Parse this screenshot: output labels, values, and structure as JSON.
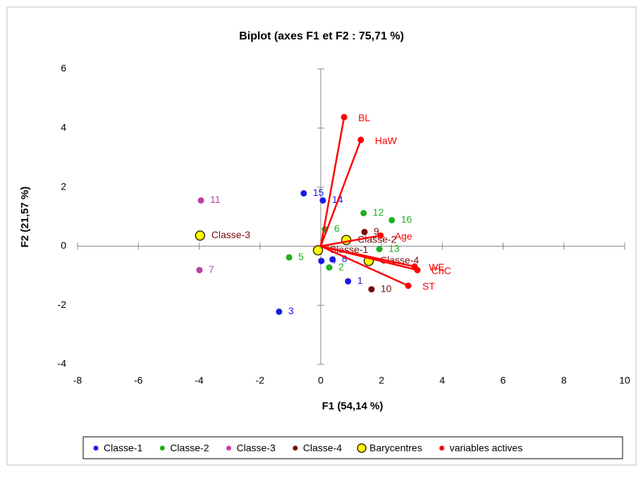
{
  "chart_data": {
    "type": "scatter",
    "title": "Biplot (axes F1 et F2 : 75,71 %)",
    "x_label": "F1 (54,14 %)",
    "y_label": "F2 (21,57 %)",
    "xlim": [
      -8,
      10
    ],
    "xticks": [
      -8,
      -6,
      -4,
      -2,
      0,
      2,
      4,
      6,
      8,
      10
    ],
    "ylim": [
      -4,
      6
    ],
    "yticks": [
      -4,
      -2,
      0,
      2,
      4,
      6
    ],
    "legend": "bottom",
    "series": [
      {
        "name": "Classe-1",
        "color": "#1a1ae6",
        "labels": [
          "15",
          "14",
          "4",
          "8",
          "1",
          "3"
        ],
        "x": [
          -0.56,
          0.07,
          0.02,
          0.39,
          0.9,
          -1.37
        ],
        "y": [
          1.79,
          1.55,
          -0.5,
          -0.45,
          -1.19,
          -2.22
        ]
      },
      {
        "name": "Classe-2",
        "color": "#1fb01f",
        "labels": [
          "6",
          "12",
          "16",
          "13",
          "5",
          "2"
        ],
        "x": [
          0.14,
          1.41,
          2.34,
          1.93,
          -1.04,
          0.28
        ],
        "y": [
          0.57,
          1.12,
          0.88,
          -0.1,
          -0.38,
          -0.72
        ]
      },
      {
        "name": "Classe-3",
        "color": "#c03fa8",
        "labels": [
          "11",
          "7"
        ],
        "x": [
          -3.94,
          -3.99
        ],
        "y": [
          1.55,
          -0.81
        ]
      },
      {
        "name": "Classe-4",
        "color": "#7a0a0a",
        "labels": [
          "9",
          "10"
        ],
        "x": [
          1.44,
          1.67
        ],
        "y": [
          0.48,
          -1.46
        ]
      },
      {
        "name": "Barycentres",
        "color": "#ffff00",
        "labels": [
          "Classe-3",
          "Classe-1",
          "Classe-2",
          "Classe-4"
        ],
        "x": [
          -3.97,
          -0.09,
          0.84,
          1.58
        ],
        "y": [
          0.36,
          -0.14,
          0.21,
          -0.5
        ]
      },
      {
        "name": "variables actives",
        "color": "#ff0000",
        "labels": [
          "BL",
          "HaW",
          "Age",
          "WE",
          "ChC",
          "ST"
        ],
        "x": [
          0.77,
          1.32,
          1.97,
          3.09,
          3.18,
          2.88
        ],
        "y": [
          4.37,
          3.6,
          0.36,
          -0.69,
          -0.81,
          -1.34
        ]
      }
    ]
  }
}
